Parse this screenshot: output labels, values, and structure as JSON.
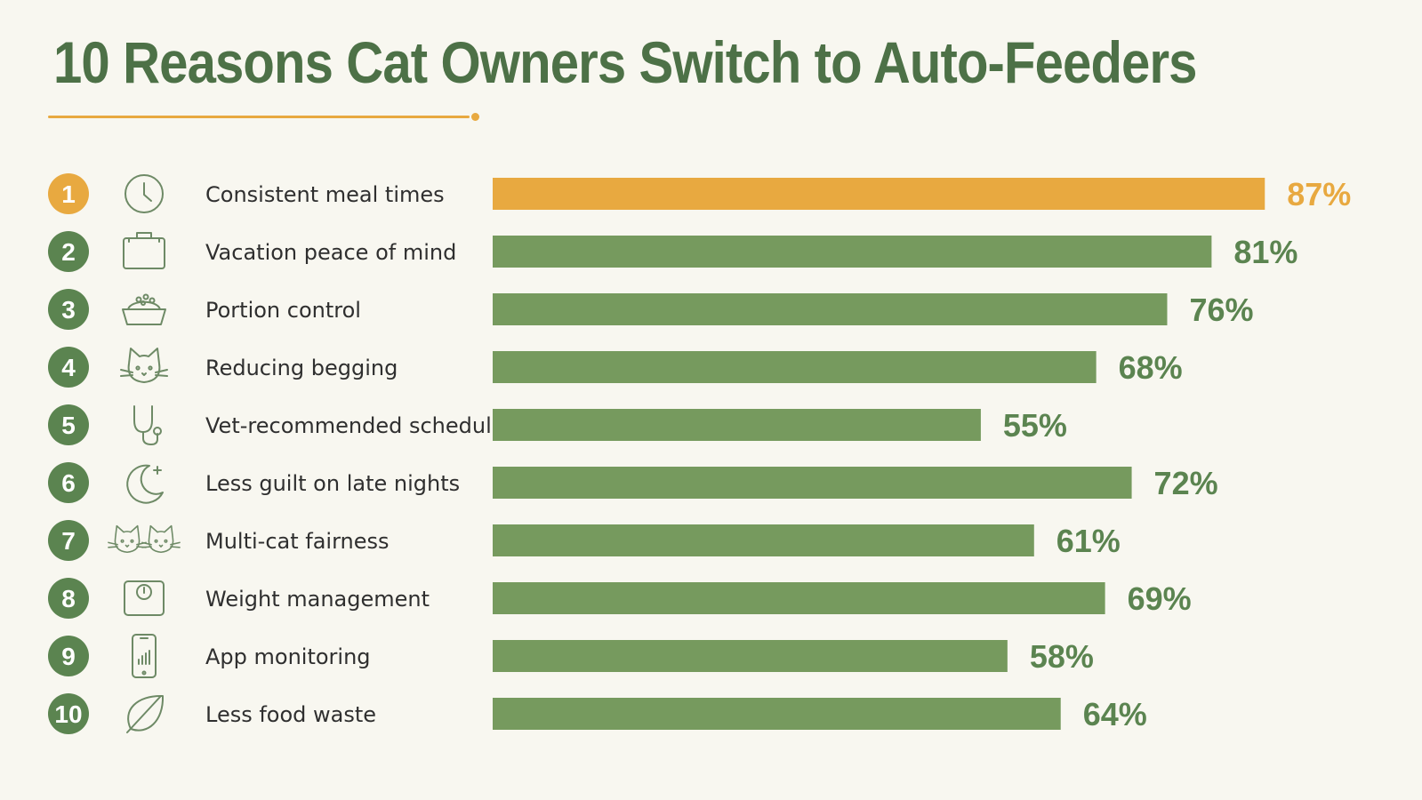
{
  "chart_data": {
    "type": "bar",
    "orientation": "horizontal",
    "title": "10 Reasons Cat Owners Switch to Auto-Feeders",
    "categories": [
      "Consistent meal times",
      "Vacation peace of mind",
      "Portion control",
      "Reducing begging",
      "Vet-recommended schedule",
      "Less guilt on late nights",
      "Multi-cat fairness",
      "Weight management",
      "App monitoring",
      "Less food waste"
    ],
    "ranks": [
      "1",
      "2",
      "3",
      "4",
      "5",
      "6",
      "7",
      "8",
      "9",
      "10"
    ],
    "values": [
      87,
      81,
      76,
      68,
      55,
      72,
      61,
      69,
      58,
      64
    ],
    "value_labels": [
      "87%",
      "81%",
      "76%",
      "68%",
      "55%",
      "72%",
      "61%",
      "69%",
      "58%",
      "64%"
    ],
    "icons": [
      "clock-icon",
      "suitcase-icon",
      "food-bowl-icon",
      "cat-face-icon",
      "stethoscope-icon",
      "moon-star-icon",
      "two-cats-icon",
      "scale-icon",
      "phone-chart-icon",
      "leaf-icon"
    ],
    "highlight_index": 0,
    "xlim": [
      0,
      100
    ],
    "grid": false,
    "legend": "none",
    "colors": {
      "highlight": "#e8a940",
      "bar": "#769a5e",
      "rank_circle": "#5b8450",
      "title": "#4d7147",
      "icon": "#6e8a66",
      "background": "#f8f7f0"
    }
  }
}
